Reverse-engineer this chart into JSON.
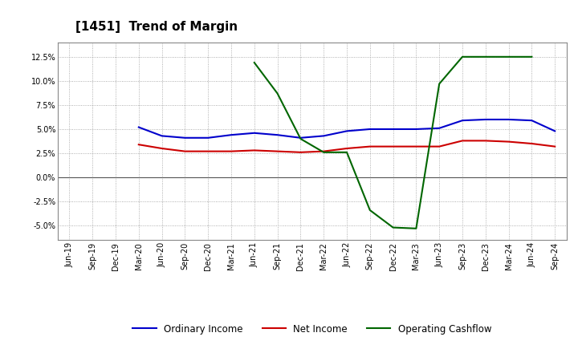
{
  "title": "[1451]  Trend of Margin",
  "x_labels": [
    "Jun-19",
    "Sep-19",
    "Dec-19",
    "Mar-20",
    "Jun-20",
    "Sep-20",
    "Dec-20",
    "Mar-21",
    "Jun-21",
    "Sep-21",
    "Dec-21",
    "Mar-22",
    "Jun-22",
    "Sep-22",
    "Dec-22",
    "Mar-23",
    "Jun-23",
    "Sep-23",
    "Dec-23",
    "Mar-24",
    "Jun-24",
    "Sep-24"
  ],
  "ordinary_income": [
    null,
    null,
    null,
    5.2,
    4.3,
    4.1,
    4.1,
    4.4,
    4.6,
    4.4,
    4.1,
    4.3,
    4.8,
    5.0,
    5.0,
    5.0,
    5.1,
    5.9,
    6.0,
    6.0,
    5.9,
    4.8
  ],
  "net_income": [
    null,
    null,
    null,
    3.4,
    3.0,
    2.7,
    2.7,
    2.7,
    2.8,
    2.7,
    2.6,
    2.7,
    3.0,
    3.2,
    3.2,
    3.2,
    3.2,
    3.8,
    3.8,
    3.7,
    3.5,
    3.2
  ],
  "operating_cashflow": [
    null,
    null,
    null,
    null,
    null,
    null,
    null,
    null,
    11.9,
    8.7,
    4.0,
    2.6,
    2.6,
    -3.4,
    -5.2,
    -5.3,
    9.7,
    12.5,
    12.5,
    12.5,
    12.5,
    null
  ],
  "ylim": [
    -6.5,
    14.0
  ],
  "yticks": [
    -5.0,
    -2.5,
    0.0,
    2.5,
    5.0,
    7.5,
    10.0,
    12.5
  ],
  "ordinary_income_color": "#0000cc",
  "net_income_color": "#cc0000",
  "operating_cashflow_color": "#006600",
  "background_color": "#FFFFFF",
  "plot_bg_color": "#FFFFFF",
  "grid_color": "#999999",
  "title_fontsize": 11,
  "legend_fontsize": 8.5,
  "tick_fontsize": 7
}
